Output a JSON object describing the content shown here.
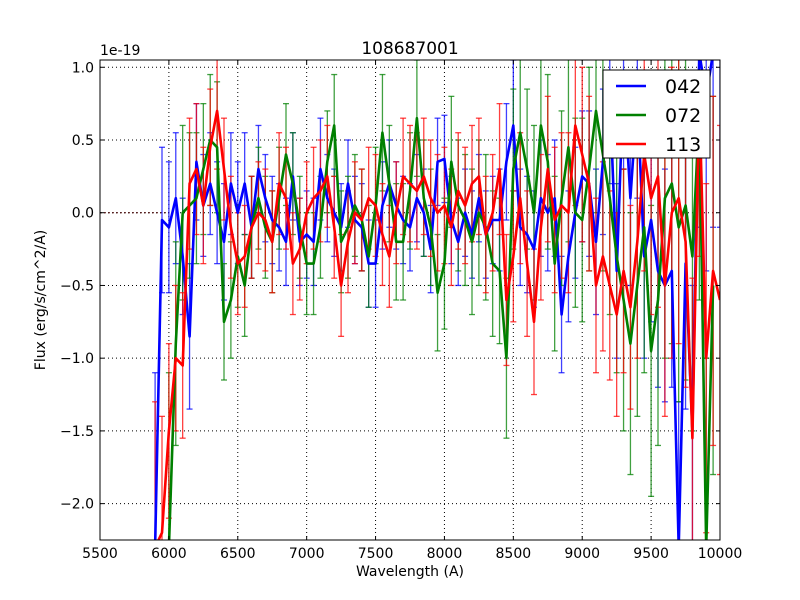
{
  "chart_data": {
    "type": "line",
    "title": "108687001",
    "xlabel": "Wavelength (A)",
    "ylabel": "Flux (erg/s/cm^2/A)",
    "y_offset_label": "1e-19",
    "xlim": [
      5500,
      10000
    ],
    "ylim": [
      -2.25,
      1.05
    ],
    "xticks": [
      5500,
      6000,
      6500,
      7000,
      7500,
      8000,
      8500,
      9000,
      9500,
      10000
    ],
    "xtick_labels": [
      "5500",
      "6000",
      "6500",
      "7000",
      "7500",
      "8000",
      "8500",
      "9000",
      "9500",
      "10000"
    ],
    "yticks": [
      -2.0,
      -1.5,
      -1.0,
      -0.5,
      0.0,
      0.5,
      1.0
    ],
    "ytick_labels": [
      "−2.0",
      "−1.5",
      "−1.0",
      "−0.5",
      "0.0",
      "0.5",
      "1.0"
    ],
    "grid": true,
    "legend_position": "top-right",
    "x": [
      5900,
      5950,
      6000,
      6050,
      6100,
      6150,
      6200,
      6250,
      6300,
      6350,
      6400,
      6450,
      6500,
      6550,
      6600,
      6650,
      6700,
      6750,
      6800,
      6850,
      6900,
      6950,
      7000,
      7050,
      7100,
      7150,
      7200,
      7250,
      7300,
      7350,
      7400,
      7450,
      7500,
      7550,
      7600,
      7650,
      7700,
      7750,
      7800,
      7850,
      7900,
      7950,
      8000,
      8050,
      8100,
      8150,
      8200,
      8250,
      8300,
      8350,
      8400,
      8450,
      8500,
      8550,
      8600,
      8650,
      8700,
      8750,
      8800,
      8850,
      8900,
      8950,
      9000,
      9050,
      9100,
      9150,
      9200,
      9250,
      9300,
      9350,
      9400,
      9450,
      9500,
      9550,
      9600,
      9650,
      9700,
      9750,
      9800,
      9850,
      9900,
      9950,
      10000
    ],
    "series": [
      {
        "name": "042",
        "color": "#0000ff",
        "values": [
          -2.3,
          -0.05,
          -0.1,
          0.1,
          -0.3,
          -0.85,
          0.35,
          0.05,
          0.2,
          0.0,
          -0.2,
          0.2,
          0.0,
          0.2,
          -0.1,
          0.3,
          0.1,
          -0.05,
          -0.1,
          -0.2,
          0.25,
          -0.2,
          -0.15,
          -0.2,
          0.3,
          0.1,
          0.0,
          -0.1,
          0.2,
          -0.05,
          -0.1,
          -0.35,
          -0.35,
          0.05,
          0.2,
          0.05,
          -0.05,
          -0.1,
          0.1,
          0.0,
          -0.25,
          0.35,
          0.37,
          -0.05,
          -0.2,
          0.0,
          -0.15,
          0.1,
          -0.15,
          -0.05,
          -0.05,
          0.35,
          0.6,
          -0.1,
          -0.15,
          -0.25,
          0.1,
          0.0,
          0.1,
          -0.7,
          -0.3,
          0.0,
          0.25,
          0.2,
          -0.2,
          0.35,
          0.8,
          -0.4,
          0.9,
          0.1,
          0.8,
          -0.3,
          -0.05,
          -0.4,
          -0.5,
          -0.4,
          -2.3,
          -0.35,
          -1.5,
          1.1,
          0.8,
          1.1,
          1.1
        ],
        "errors": [
          1.2,
          0.5,
          0.45,
          0.45,
          0.4,
          0.5,
          0.4,
          0.35,
          0.35,
          0.35,
          0.4,
          0.35,
          0.35,
          0.35,
          0.35,
          0.3,
          0.3,
          0.3,
          0.3,
          0.3,
          0.3,
          0.3,
          0.3,
          0.3,
          0.35,
          0.3,
          0.3,
          0.3,
          0.3,
          0.3,
          0.3,
          0.3,
          0.3,
          0.3,
          0.3,
          0.3,
          0.3,
          0.3,
          0.3,
          0.3,
          0.3,
          0.3,
          0.3,
          0.3,
          0.3,
          0.3,
          0.3,
          0.3,
          0.3,
          0.3,
          0.35,
          0.4,
          0.45,
          0.4,
          0.4,
          0.4,
          0.4,
          0.4,
          0.4,
          0.4,
          0.45,
          0.45,
          0.45,
          0.5,
          0.5,
          0.5,
          0.6,
          0.6,
          0.6,
          0.6,
          0.7,
          0.7,
          0.7,
          0.8,
          0.8,
          0.8,
          1.0,
          1.0,
          1.0,
          1.2,
          1.2,
          1.2,
          1.2
        ]
      },
      {
        "name": "072",
        "color": "#008000",
        "values": [
          null,
          null,
          -2.3,
          -0.9,
          0.0,
          0.05,
          0.1,
          0.3,
          0.5,
          0.45,
          -0.75,
          -0.6,
          -0.3,
          -0.5,
          -0.1,
          0.1,
          -0.1,
          -0.2,
          0.1,
          0.4,
          0.2,
          -0.1,
          -0.35,
          -0.35,
          -0.1,
          0.35,
          0.6,
          -0.2,
          -0.1,
          0.05,
          -0.05,
          -0.3,
          0.05,
          0.55,
          0.2,
          -0.2,
          -0.2,
          0.15,
          0.65,
          0.1,
          -0.1,
          -0.55,
          -0.35,
          0.35,
          0.05,
          -0.05,
          -0.2,
          0.0,
          -0.1,
          -0.35,
          -0.4,
          -1.0,
          0.3,
          0.55,
          0.3,
          0.0,
          0.6,
          0.35,
          -0.35,
          0.1,
          0.45,
          0.0,
          -0.05,
          0.3,
          0.7,
          0.4,
          0.1,
          -0.3,
          -0.6,
          -0.9,
          -0.5,
          -0.1,
          -0.95,
          -0.6,
          0.1,
          0.2,
          -0.1,
          0.05,
          -0.3,
          0.7,
          -2.3,
          -0.5,
          null
        ],
        "errors": [
          null,
          null,
          1.2,
          0.7,
          0.6,
          0.5,
          0.45,
          0.45,
          0.45,
          0.45,
          0.4,
          0.4,
          0.35,
          0.35,
          0.35,
          0.35,
          0.35,
          0.35,
          0.35,
          0.35,
          0.35,
          0.35,
          0.35,
          0.35,
          0.35,
          0.35,
          0.35,
          0.35,
          0.35,
          0.35,
          0.35,
          0.35,
          0.4,
          0.4,
          0.4,
          0.4,
          0.4,
          0.4,
          0.4,
          0.4,
          0.4,
          0.4,
          0.45,
          0.45,
          0.45,
          0.45,
          0.5,
          0.5,
          0.5,
          0.5,
          0.5,
          0.55,
          0.55,
          0.55,
          0.55,
          0.6,
          0.6,
          0.6,
          0.6,
          0.6,
          0.65,
          0.65,
          0.7,
          0.7,
          0.7,
          0.8,
          0.8,
          0.8,
          0.9,
          0.9,
          0.9,
          1.0,
          1.0,
          1.0,
          1.1,
          1.1,
          1.2,
          1.2,
          1.2,
          1.3,
          1.3,
          1.3,
          null
        ]
      },
      {
        "name": "113",
        "color": "#ff0000",
        "values": [
          -2.3,
          -2.2,
          -1.5,
          -1.0,
          -1.05,
          0.2,
          0.3,
          0.05,
          0.45,
          0.7,
          0.3,
          -0.1,
          -0.35,
          -0.3,
          -0.1,
          0.0,
          -0.05,
          -0.2,
          0.2,
          0.1,
          -0.35,
          -0.25,
          0.0,
          0.1,
          0.15,
          0.25,
          -0.1,
          -0.5,
          -0.2,
          0.0,
          -0.05,
          0.1,
          0.05,
          -0.15,
          -0.3,
          0.0,
          0.25,
          0.2,
          0.15,
          0.25,
          0.1,
          0.0,
          0.05,
          -0.1,
          0.15,
          0.05,
          0.2,
          0.25,
          -0.15,
          0.0,
          0.3,
          -0.6,
          -0.3,
          0.1,
          -0.35,
          -0.75,
          -0.1,
          0.3,
          -0.05,
          0.05,
          0.0,
          0.6,
          0.4,
          0.2,
          -0.5,
          -0.3,
          -0.5,
          -0.7,
          -0.4,
          -0.65,
          -0.2,
          0.4,
          0.1,
          0.25,
          -0.5,
          0.0,
          0.1,
          -0.2,
          -1.55,
          0.8,
          -1.0,
          -0.4,
          -0.6
        ],
        "errors": [
          1.0,
          0.8,
          0.6,
          0.5,
          0.5,
          0.45,
          0.45,
          0.4,
          0.4,
          0.4,
          0.35,
          0.35,
          0.35,
          0.35,
          0.35,
          0.35,
          0.35,
          0.35,
          0.35,
          0.35,
          0.35,
          0.35,
          0.35,
          0.35,
          0.35,
          0.35,
          0.35,
          0.35,
          0.35,
          0.35,
          0.35,
          0.35,
          0.35,
          0.35,
          0.35,
          0.35,
          0.4,
          0.4,
          0.4,
          0.4,
          0.4,
          0.4,
          0.4,
          0.4,
          0.4,
          0.4,
          0.4,
          0.4,
          0.4,
          0.4,
          0.45,
          0.45,
          0.45,
          0.45,
          0.5,
          0.5,
          0.5,
          0.5,
          0.5,
          0.5,
          0.55,
          0.55,
          0.6,
          0.6,
          0.6,
          0.65,
          0.65,
          0.7,
          0.7,
          0.7,
          0.8,
          0.8,
          0.8,
          0.9,
          0.9,
          1.0,
          1.0,
          1.0,
          1.1,
          1.1,
          1.2,
          1.2,
          1.2
        ]
      }
    ]
  }
}
